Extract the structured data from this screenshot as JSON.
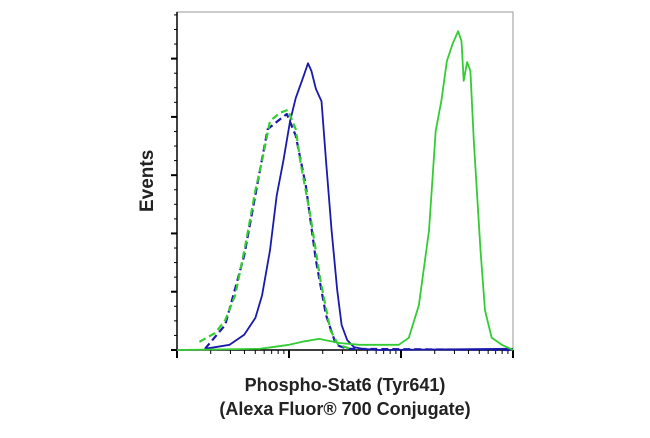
{
  "chart_data": {
    "type": "line",
    "title": "",
    "xlabel_line1": "Phospho-Stat6 (Tyr641)",
    "xlabel_line2": "(Alexa Fluor® 700 Conjugate)",
    "ylabel": "Events",
    "x_scale": "log",
    "x_decades": 3,
    "xlim": [
      0,
      3
    ],
    "ylim": [
      0,
      5.8
    ],
    "y_major_ticks": [
      0,
      1,
      2,
      3,
      4,
      5
    ],
    "grid": false,
    "legend": "none",
    "series": [
      {
        "color": "#1a1aaa",
        "dash": false,
        "x": [
          0.25,
          0.47,
          0.6,
          0.7,
          0.76,
          0.83,
          0.89,
          0.95,
          1.01,
          1.06,
          1.13,
          1.17,
          1.2,
          1.24,
          1.29,
          1.33,
          1.38,
          1.43,
          1.47,
          1.52,
          1.58,
          1.65,
          1.8,
          3.0
        ],
        "y": [
          0.02,
          0.09,
          0.26,
          0.55,
          0.94,
          1.71,
          2.65,
          3.25,
          3.93,
          4.32,
          4.7,
          4.92,
          4.79,
          4.48,
          4.27,
          3.25,
          2.05,
          1.03,
          0.43,
          0.17,
          0.05,
          0.02,
          0,
          0.02
        ]
      },
      {
        "color": "#1a1aaa",
        "dash": true,
        "x": [
          0.25,
          0.43,
          0.6,
          0.74,
          0.81,
          0.9,
          0.98,
          1.06,
          1.15,
          1.24,
          1.33,
          1.42,
          1.52,
          3.0
        ],
        "y": [
          0.02,
          0.43,
          1.62,
          3.08,
          3.79,
          3.93,
          4.05,
          3.68,
          2.82,
          1.54,
          0.6,
          0.09,
          0.02,
          0
        ]
      },
      {
        "color": "#33cc33",
        "dash": true,
        "x": [
          0.2,
          0.34,
          0.43,
          0.52,
          0.61,
          0.7,
          0.76,
          0.83,
          0.92,
          0.99,
          1.06,
          1.1,
          1.19,
          1.28,
          1.37,
          1.44,
          1.55
        ],
        "y": [
          0.14,
          0.29,
          0.51,
          0.94,
          1.79,
          2.74,
          3.25,
          3.93,
          4.07,
          4.12,
          3.79,
          3.25,
          2.31,
          1.2,
          0.34,
          0.09,
          0.02
        ]
      },
      {
        "color": "#33cc33",
        "dash": false,
        "x": [
          0,
          0.74,
          1.0,
          1.14,
          1.27,
          1.45,
          1.63,
          1.98,
          2.07,
          2.16,
          2.25,
          2.31,
          2.36,
          2.41,
          2.46,
          2.51,
          2.54,
          2.56,
          2.59,
          2.62,
          2.65,
          2.71,
          2.75,
          2.81,
          2.9,
          3.0
        ],
        "y": [
          0,
          0.02,
          0.09,
          0.15,
          0.19,
          0.12,
          0.09,
          0.09,
          0.21,
          0.77,
          2.05,
          3.76,
          4.27,
          4.96,
          5.25,
          5.47,
          5.3,
          4.62,
          4.94,
          4.79,
          3.59,
          1.71,
          0.68,
          0.21,
          0.09,
          0
        ]
      }
    ]
  }
}
